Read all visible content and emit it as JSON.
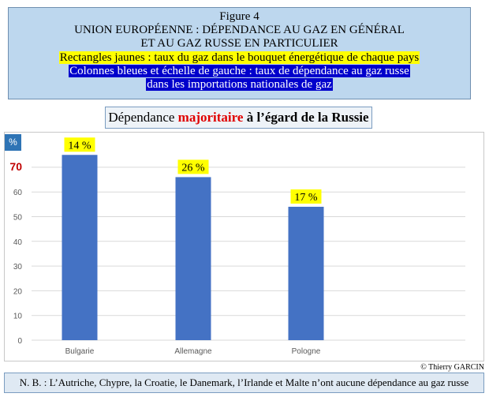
{
  "header": {
    "line1": "Figure 4",
    "line2": "UNION EUROPÉENNE : DÉPENDANCE AU GAZ EN GÉNÉRAL",
    "line3": "ET  AU GAZ RUSSE EN PARTICULIER",
    "line4": "Rectangles jaunes : taux du gaz dans le bouquet énergétique de chaque pays",
    "line5a": "Colonnes bleues  et échelle de gauche : taux de dépendance au gaz russe",
    "line5b": "dans les importations nationales de gaz"
  },
  "subtitle": {
    "prefix": "Dépendance ",
    "emphasis": "majoritaire",
    "suffix": " à l’égard de la Russie"
  },
  "unit_label": "%",
  "copyright": "© Thierry GARCIN",
  "note": "N. B. : L’Autriche, Chypre, la Croatie, le Danemark, l’Irlande et Malte n’ont aucune dépendance au gaz russe",
  "colors": {
    "bar": "#4472c4",
    "yellow_label": "#ffff00",
    "highlight_tick": "#c00000",
    "header_bg": "#bdd7ee",
    "blue_highlight": "#0000cc"
  },
  "chart_data": {
    "type": "bar",
    "categories": [
      "Bulgarie",
      "Allemagne",
      "Pologne"
    ],
    "values": [
      75,
      66,
      54
    ],
    "bar_labels": [
      "14 %",
      "26 %",
      "17 %"
    ],
    "yticks": [
      0,
      10,
      20,
      30,
      40,
      50,
      60,
      70
    ],
    "ytick_labels": [
      "0",
      "10",
      "20",
      "30",
      "40",
      "50",
      "60",
      "70"
    ],
    "highlight_tick": 70,
    "ylim": [
      0,
      80
    ],
    "grid": true,
    "legend": "none"
  }
}
